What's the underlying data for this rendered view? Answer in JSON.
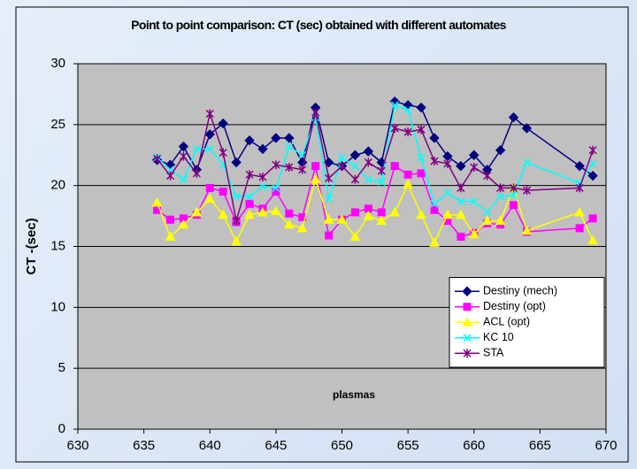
{
  "chart_data": {
    "type": "line",
    "title": "Point to point comparison: CT (sec) obtained with different automates",
    "xlabel": "plasmas",
    "ylabel": "CT -(sec)",
    "x": [
      636,
      637,
      638,
      639,
      640,
      641,
      642,
      643,
      644,
      645,
      646,
      647,
      648,
      649,
      650,
      651,
      652,
      653,
      654,
      655,
      656,
      657,
      658,
      659,
      660,
      661,
      662,
      663,
      664,
      668,
      669
    ],
    "series": [
      {
        "name": "Destiny (mech)",
        "color": "#000080",
        "marker": "diamond",
        "values": [
          22.1,
          21.7,
          23.2,
          21.3,
          24.2,
          25.1,
          21.9,
          23.7,
          23.0,
          23.9,
          23.9,
          21.9,
          26.4,
          21.9,
          21.6,
          22.5,
          22.8,
          21.9,
          26.9,
          26.6,
          26.4,
          23.9,
          22.4,
          21.6,
          22.5,
          21.3,
          22.9,
          25.6,
          24.7,
          21.6,
          20.8
        ]
      },
      {
        "name": "Destiny (opt)",
        "color": "#ff00ff",
        "marker": "square",
        "values": [
          18.0,
          17.2,
          17.3,
          17.6,
          19.8,
          19.5,
          17.0,
          18.5,
          18.1,
          19.5,
          17.7,
          17.4,
          21.6,
          15.9,
          17.2,
          17.8,
          18.1,
          17.8,
          21.6,
          20.9,
          21.0,
          18.0,
          17.1,
          15.8,
          16.1,
          16.9,
          16.8,
          18.4,
          16.2,
          16.5,
          17.3
        ]
      },
      {
        "name": "ACL (opt)",
        "color": "#ffff00",
        "marker": "triangle",
        "values": [
          18.6,
          15.8,
          16.8,
          17.8,
          18.9,
          17.6,
          15.4,
          17.6,
          17.8,
          17.9,
          16.8,
          16.5,
          20.5,
          17.2,
          17.2,
          15.8,
          17.5,
          17.1,
          17.8,
          20.1,
          17.6,
          15.3,
          17.6,
          17.6,
          16.0,
          17.1,
          17.1,
          19.8,
          16.3,
          17.8,
          15.5
        ]
      },
      {
        "name": "KC 10",
        "color": "#00ffff",
        "marker": "x",
        "values": [
          22.3,
          21.3,
          20.5,
          23.0,
          23.0,
          21.7,
          19.1,
          19.1,
          19.9,
          19.8,
          23.2,
          22.5,
          25.6,
          18.9,
          22.3,
          21.6,
          20.5,
          20.3,
          26.6,
          26.2,
          22.3,
          18.5,
          19.4,
          18.7,
          18.7,
          17.8,
          19.1,
          19.2,
          21.9,
          20.2,
          21.8
        ]
      },
      {
        "name": "STA",
        "color": "#800080",
        "marker": "asterisk",
        "values": [
          22.2,
          20.8,
          22.4,
          21.0,
          25.9,
          22.7,
          17.1,
          20.9,
          20.7,
          21.7,
          21.5,
          21.3,
          26.0,
          20.6,
          21.6,
          20.5,
          21.9,
          21.2,
          24.7,
          24.4,
          24.6,
          22.0,
          21.8,
          19.8,
          21.5,
          20.8,
          19.8,
          19.8,
          19.6,
          19.8,
          22.9
        ]
      }
    ],
    "xlim": [
      630,
      670
    ],
    "xticks": [
      630,
      635,
      640,
      645,
      650,
      655,
      660,
      665,
      670
    ],
    "ylim": [
      0,
      30
    ],
    "yticks": [
      0,
      5,
      10,
      15,
      20,
      25,
      30
    ],
    "grid": true,
    "legend": "lower right",
    "plot_background": "#c0c0c0"
  }
}
